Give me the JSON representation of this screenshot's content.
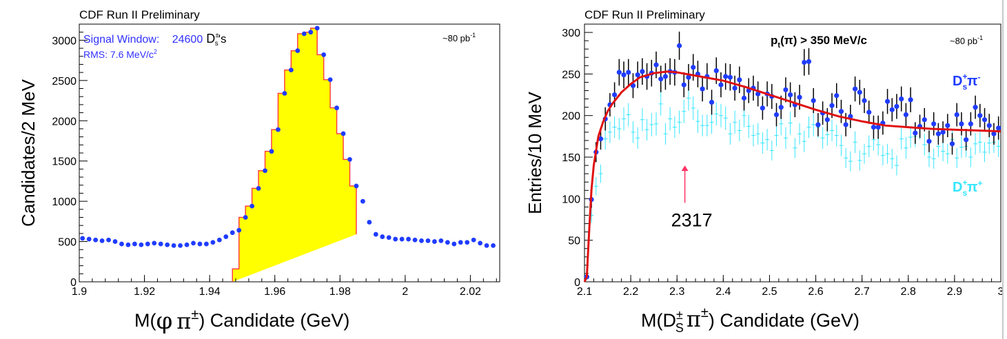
{
  "chart_data": [
    {
      "type": "histogram",
      "header": "CDF Run II Preliminary",
      "lumi": "~80 pb",
      "lumi_exp": "-1",
      "annotations": {
        "signal_label": "Signal Window:",
        "signal_count": "24600",
        "signal_suffix": "'s",
        "rms_label": "RMS: 7.6 MeV/c",
        "rms_exp": "2"
      },
      "ylabel": "Candidates/2 MeV",
      "xlabel": {
        "prefix": "M(",
        "phi": "φ",
        "pi": "π",
        "pm": "±",
        "suffix": ")  Candidate (GeV)"
      },
      "xlim": [
        1.9,
        2.029
      ],
      "ylim": [
        0,
        3200
      ],
      "x_ticks": [
        1.9,
        1.92,
        1.94,
        1.96,
        1.98,
        2,
        2.02
      ],
      "x_tick_labels": [
        "1.9",
        "1.92",
        "1.94",
        "1.96",
        "1.98",
        "2",
        "2.02"
      ],
      "y_ticks": [
        0,
        500,
        1000,
        1500,
        2000,
        2500,
        3000
      ],
      "y_tick_labels": [
        "0",
        "500",
        "1000",
        "1500",
        "2000",
        "2500",
        "3000"
      ],
      "points": {
        "x": [
          1.901,
          1.903,
          1.905,
          1.907,
          1.909,
          1.911,
          1.913,
          1.915,
          1.917,
          1.919,
          1.921,
          1.923,
          1.925,
          1.927,
          1.929,
          1.931,
          1.933,
          1.935,
          1.937,
          1.939,
          1.941,
          1.943,
          1.945,
          1.947,
          1.949,
          1.951,
          1.953,
          1.955,
          1.957,
          1.959,
          1.961,
          1.963,
          1.965,
          1.967,
          1.969,
          1.971,
          1.973,
          1.975,
          1.977,
          1.979,
          1.981,
          1.983,
          1.985,
          1.987,
          1.989,
          1.991,
          1.993,
          1.995,
          1.997,
          1.999,
          2.001,
          2.003,
          2.005,
          2.007,
          2.009,
          2.011,
          2.013,
          2.015,
          2.017,
          2.019,
          2.021,
          2.023,
          2.025,
          2.027
        ],
        "y": [
          540,
          530,
          520,
          510,
          520,
          500,
          470,
          460,
          470,
          460,
          470,
          480,
          470,
          460,
          450,
          450,
          460,
          480,
          470,
          470,
          490,
          520,
          560,
          610,
          640,
          800,
          940,
          1160,
          1380,
          1620,
          1890,
          2340,
          2630,
          2870,
          3080,
          3100,
          3150,
          2820,
          2510,
          2160,
          1840,
          1520,
          1190,
          1000,
          740,
          590,
          560,
          550,
          530,
          530,
          530,
          520,
          510,
          510,
          500,
          510,
          490,
          470,
          490,
          490,
          520,
          480,
          450,
          450
        ]
      },
      "signal_histogram": {
        "bin_edges": [
          1.947,
          1.949,
          1.951,
          1.953,
          1.955,
          1.957,
          1.959,
          1.961,
          1.963,
          1.965,
          1.967,
          1.969,
          1.971,
          1.973,
          1.975,
          1.977,
          1.979,
          1.981,
          1.983,
          1.985
        ],
        "values": [
          160,
          800,
          940,
          1160,
          1380,
          1620,
          1890,
          2340,
          2630,
          2870,
          3080,
          3100,
          3150,
          2820,
          2510,
          2160,
          1840,
          1520,
          1190,
          590
        ]
      },
      "colors": {
        "points": "#1f3cff",
        "fill": "#ffff00",
        "outline": "#ff4040",
        "text_blue": "#3030ff"
      }
    },
    {
      "type": "scatter",
      "header": "CDF Run II Preliminary",
      "lumi": "~80 pb",
      "lumi_exp": "-1",
      "cut_label": {
        "p": "p",
        "sub": "t",
        "rest": "(π)  >  350  MeV/c"
      },
      "ylabel": "Entries/10 MeV",
      "xlabel": {
        "prefix": "M(D",
        "sup": "±",
        "sub": "S",
        "pi": "π",
        "pm": "±",
        "suffix": ")  Candidate (GeV)"
      },
      "xlim": [
        2.1,
        3.0
      ],
      "ylim": [
        0,
        310
      ],
      "x_ticks": [
        2.1,
        2.2,
        2.3,
        2.4,
        2.5,
        2.6,
        2.7,
        2.8,
        2.9,
        3.0
      ],
      "x_tick_labels": [
        "2.1",
        "2.2",
        "2.3",
        "2.4",
        "2.5",
        "2.6",
        "2.7",
        "2.8",
        "2.9",
        "3"
      ],
      "y_ticks": [
        0,
        50,
        100,
        150,
        200,
        250,
        300
      ],
      "y_tick_labels": [
        "0",
        "50",
        "100",
        "150",
        "200",
        "250",
        "300"
      ],
      "annotation_arrow": {
        "x": 2.317,
        "y_from": 95,
        "y_to": 140,
        "label": "2317",
        "color": "#ff3366"
      },
      "series": [
        {
          "name": "Ds+ pi-",
          "label": {
            "main": "D",
            "sup": "+",
            "sub": "s",
            "pi": "π",
            "charge": "-"
          },
          "color": "#1f3cff",
          "x": [
            2.105,
            2.115,
            2.125,
            2.135,
            2.145,
            2.155,
            2.165,
            2.175,
            2.185,
            2.195,
            2.205,
            2.215,
            2.225,
            2.235,
            2.245,
            2.255,
            2.265,
            2.275,
            2.285,
            2.295,
            2.305,
            2.315,
            2.325,
            2.335,
            2.345,
            2.355,
            2.365,
            2.375,
            2.385,
            2.395,
            2.405,
            2.415,
            2.425,
            2.435,
            2.445,
            2.455,
            2.465,
            2.475,
            2.485,
            2.495,
            2.505,
            2.515,
            2.525,
            2.535,
            2.545,
            2.555,
            2.565,
            2.575,
            2.585,
            2.595,
            2.605,
            2.615,
            2.625,
            2.635,
            2.645,
            2.655,
            2.665,
            2.675,
            2.685,
            2.695,
            2.705,
            2.715,
            2.725,
            2.735,
            2.745,
            2.755,
            2.765,
            2.775,
            2.785,
            2.795,
            2.805,
            2.815,
            2.825,
            2.835,
            2.845,
            2.855,
            2.865,
            2.875,
            2.885,
            2.895,
            2.905,
            2.915,
            2.925,
            2.935,
            2.945,
            2.955,
            2.965,
            2.975,
            2.985,
            2.995
          ],
          "y": [
            6,
            99,
            156,
            172,
            196,
            213,
            225,
            252,
            249,
            252,
            236,
            249,
            253,
            247,
            251,
            261,
            244,
            247,
            253,
            252,
            284,
            237,
            246,
            258,
            250,
            232,
            247,
            216,
            254,
            237,
            247,
            246,
            233,
            243,
            221,
            230,
            233,
            226,
            209,
            226,
            223,
            201,
            210,
            231,
            225,
            213,
            222,
            264,
            265,
            218,
            189,
            203,
            195,
            212,
            224,
            205,
            189,
            199,
            232,
            228,
            218,
            204,
            186,
            186,
            191,
            217,
            207,
            211,
            220,
            201,
            219,
            179,
            187,
            195,
            169,
            190,
            178,
            180,
            188,
            166,
            201,
            190,
            171,
            190,
            210,
            200,
            195,
            188,
            178,
            185
          ],
          "err": [
            2,
            10,
            12,
            13,
            14,
            14,
            15,
            16,
            16,
            16,
            15,
            16,
            16,
            16,
            16,
            16,
            16,
            16,
            16,
            16,
            17,
            15,
            16,
            16,
            16,
            15,
            16,
            15,
            16,
            15,
            16,
            16,
            15,
            16,
            15,
            15,
            15,
            15,
            14,
            15,
            15,
            14,
            14,
            15,
            15,
            15,
            15,
            16,
            16,
            15,
            14,
            14,
            14,
            15,
            15,
            14,
            14,
            14,
            15,
            15,
            15,
            14,
            14,
            14,
            14,
            15,
            14,
            15,
            15,
            14,
            15,
            13,
            14,
            14,
            13,
            14,
            13,
            13,
            14,
            13,
            14,
            14,
            13,
            14,
            14,
            14,
            14,
            14,
            13,
            14
          ]
        },
        {
          "name": "Ds+ pi+",
          "label": {
            "main": "D",
            "sup": "+",
            "sub": "s",
            "pi": "π",
            "charge": "+"
          },
          "color": "#33e6ff",
          "x": [
            2.105,
            2.115,
            2.125,
            2.135,
            2.145,
            2.155,
            2.165,
            2.175,
            2.185,
            2.195,
            2.205,
            2.215,
            2.225,
            2.235,
            2.245,
            2.255,
            2.265,
            2.275,
            2.285,
            2.295,
            2.305,
            2.315,
            2.325,
            2.335,
            2.345,
            2.355,
            2.365,
            2.375,
            2.385,
            2.395,
            2.405,
            2.415,
            2.425,
            2.435,
            2.445,
            2.455,
            2.465,
            2.475,
            2.485,
            2.495,
            2.505,
            2.515,
            2.525,
            2.535,
            2.545,
            2.555,
            2.565,
            2.575,
            2.585,
            2.595,
            2.605,
            2.615,
            2.625,
            2.635,
            2.645,
            2.655,
            2.665,
            2.675,
            2.685,
            2.695,
            2.705,
            2.715,
            2.725,
            2.735,
            2.745,
            2.755,
            2.765,
            2.775,
            2.785,
            2.795,
            2.805,
            2.815,
            2.825,
            2.835,
            2.845,
            2.855,
            2.865,
            2.875,
            2.885,
            2.895,
            2.905,
            2.915,
            2.925,
            2.935,
            2.945,
            2.955,
            2.965,
            2.975,
            2.985,
            2.995
          ],
          "y": [
            4,
            80,
            115,
            130,
            172,
            180,
            186,
            184,
            196,
            201,
            180,
            173,
            195,
            183,
            189,
            190,
            214,
            178,
            196,
            186,
            192,
            205,
            221,
            209,
            193,
            188,
            188,
            192,
            202,
            200,
            197,
            178,
            192,
            182,
            200,
            187,
            176,
            178,
            167,
            171,
            158,
            176,
            190,
            173,
            191,
            161,
            178,
            169,
            186,
            189,
            186,
            173,
            177,
            182,
            176,
            164,
            149,
            145,
            168,
            146,
            154,
            163,
            171,
            165,
            152,
            154,
            148,
            140,
            172,
            161,
            174,
            175,
            184,
            165,
            150,
            148,
            163,
            157,
            154,
            171,
            149,
            162,
            163,
            150,
            166,
            168,
            156,
            167,
            168,
            163
          ],
          "err": [
            2,
            9,
            11,
            11,
            13,
            13,
            13,
            13,
            14,
            14,
            13,
            13,
            14,
            13,
            14,
            14,
            14,
            13,
            14,
            13,
            14,
            14,
            15,
            14,
            14,
            13,
            13,
            14,
            14,
            14,
            14,
            13,
            14,
            13,
            14,
            14,
            13,
            13,
            13,
            13,
            12,
            13,
            14,
            13,
            14,
            12,
            13,
            13,
            13,
            14,
            13,
            13,
            13,
            13,
            13,
            13,
            12,
            12,
            13,
            12,
            12,
            13,
            13,
            13,
            12,
            12,
            12,
            12,
            13,
            13,
            13,
            13,
            13,
            13,
            12,
            12,
            13,
            12,
            12,
            13,
            12,
            13,
            13,
            12,
            13,
            13,
            12,
            13,
            13,
            13
          ]
        }
      ],
      "fit": {
        "name": "background fit",
        "color": "#e01010",
        "x": [
          2.1,
          2.105,
          2.11,
          2.115,
          2.12,
          2.13,
          2.14,
          2.15,
          2.16,
          2.18,
          2.2,
          2.22,
          2.25,
          2.28,
          2.3,
          2.33,
          2.36,
          2.4,
          2.45,
          2.5,
          2.55,
          2.6,
          2.65,
          2.7,
          2.75,
          2.8,
          2.85,
          2.9,
          2.95,
          3.0
        ],
        "y": [
          0,
          6,
          60,
          110,
          140,
          175,
          192,
          205,
          214,
          228,
          238,
          246,
          251,
          253,
          252,
          249,
          246,
          242,
          234,
          225,
          216,
          207,
          199,
          193,
          188,
          186,
          184,
          183,
          182,
          181
        ]
      }
    }
  ]
}
